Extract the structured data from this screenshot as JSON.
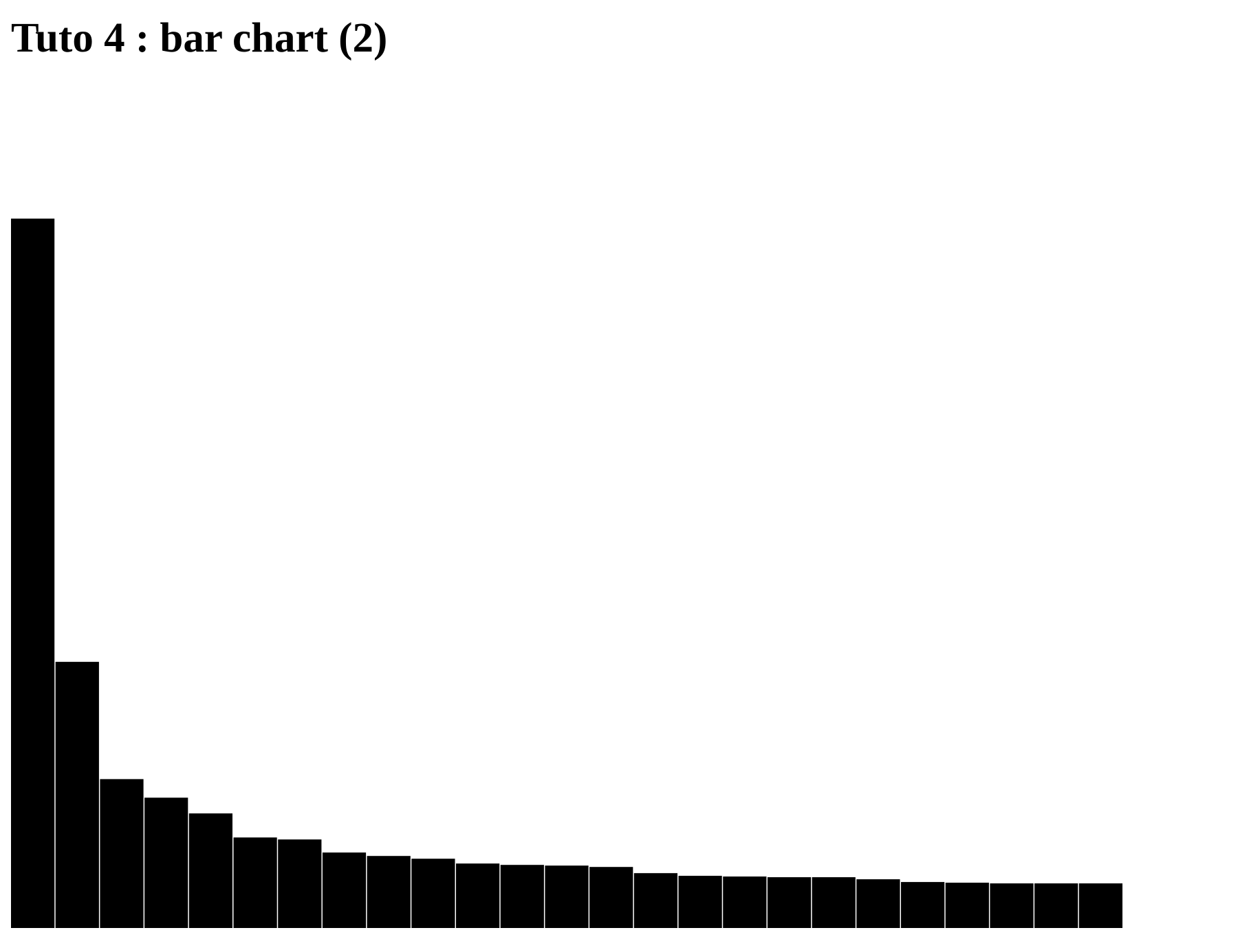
{
  "page": {
    "title": "Tuto 4 : bar chart (2)"
  },
  "chart_data": {
    "type": "bar",
    "title": "Tuto 4 : bar chart (2)",
    "xlabel": "",
    "ylabel": "",
    "grid": false,
    "legend": "none",
    "bar_color": "#000000",
    "separator_color": "#ffffff",
    "ylim": [
      0,
      1034
    ],
    "values": [
      1034,
      388,
      217,
      190,
      167,
      132,
      129,
      110,
      105,
      101,
      94,
      92,
      91,
      89,
      80,
      76,
      75,
      74,
      74,
      71,
      67,
      66,
      65,
      65,
      65
    ]
  }
}
